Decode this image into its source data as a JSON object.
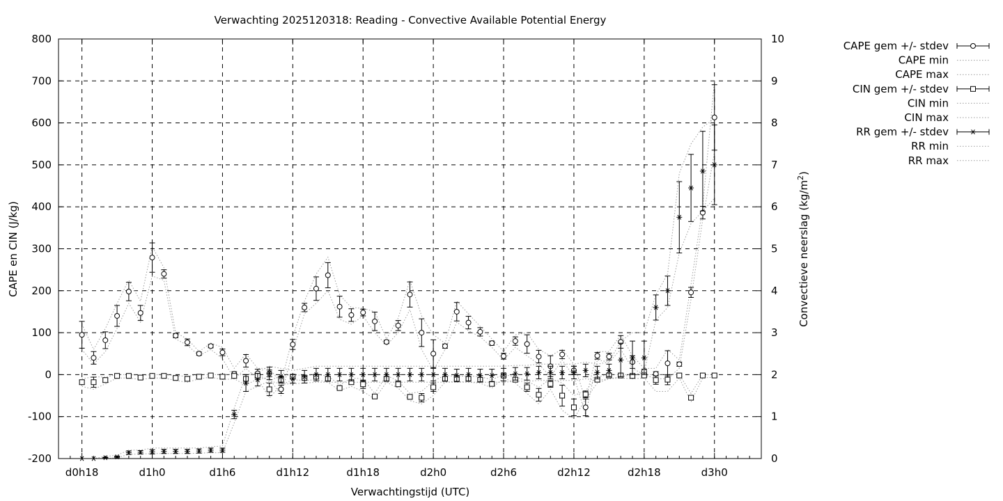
{
  "chart_data": {
    "type": "line",
    "title": "Verwachting 2025120318: Reading - Convective Available Potential Energy",
    "xlabel": "Verwachtingstijd (UTC)",
    "ylabel_left": "CAPE en CIN (J/kg)",
    "ylabel_right_main": "Convectieve neerslag (kg/m",
    "ylabel_right_sup": "2",
    "ylabel_right_end": ")",
    "ylim_left": [
      -200,
      800
    ],
    "ylim_right": [
      0,
      10
    ],
    "xlim_hours": [
      16,
      76
    ],
    "grid": true,
    "legend_position": "outside-right",
    "x_ticks": [
      {
        "hour": 18,
        "label": "d0h18"
      },
      {
        "hour": 24,
        "label": "d1h0"
      },
      {
        "hour": 30,
        "label": "d1h6"
      },
      {
        "hour": 36,
        "label": "d1h12"
      },
      {
        "hour": 42,
        "label": "d1h18"
      },
      {
        "hour": 48,
        "label": "d2h0"
      },
      {
        "hour": 54,
        "label": "d2h6"
      },
      {
        "hour": 60,
        "label": "d2h12"
      },
      {
        "hour": 66,
        "label": "d2h18"
      },
      {
        "hour": 72,
        "label": "d3h0"
      }
    ],
    "y_ticks_left": [
      "-200",
      "-100",
      "0",
      "100",
      "200",
      "300",
      "400",
      "500",
      "600",
      "700",
      "800"
    ],
    "y_ticks_right": [
      "0",
      "1",
      "2",
      "3",
      "4",
      "5",
      "6",
      "7",
      "8",
      "9",
      "10"
    ],
    "x_hours": [
      18,
      19,
      20,
      21,
      22,
      23,
      24,
      25,
      26,
      27,
      28,
      29,
      30,
      31,
      32,
      33,
      34,
      35,
      36,
      37,
      38,
      39,
      40,
      41,
      42,
      43,
      44,
      45,
      46,
      47,
      48,
      49,
      50,
      51,
      52,
      53,
      54,
      55,
      56,
      57,
      58,
      59,
      60,
      61,
      62,
      63,
      64,
      65,
      66,
      67,
      68,
      69,
      70,
      71,
      72
    ],
    "series": [
      {
        "name": "CAPE gem +/- stdev",
        "marker": "circle",
        "axis": "left",
        "mean": [
          95,
          40,
          82,
          140,
          198,
          147,
          279,
          240,
          93,
          77,
          50,
          68,
          53,
          2,
          33,
          3,
          3,
          -35,
          72,
          160,
          205,
          237,
          162,
          142,
          148,
          127,
          78,
          117,
          191,
          100,
          50,
          68,
          150,
          124,
          102,
          75,
          44,
          80,
          73,
          43,
          20,
          48,
          10,
          -78,
          45,
          43,
          78,
          30,
          8,
          2,
          27,
          25,
          196,
          386,
          613
        ],
        "sd": [
          32,
          15,
          20,
          25,
          22,
          18,
          35,
          10,
          5,
          8,
          4,
          4,
          8,
          5,
          15,
          10,
          8,
          10,
          12,
          10,
          28,
          30,
          25,
          15,
          8,
          22,
          4,
          12,
          30,
          33,
          33,
          5,
          22,
          15,
          10,
          5,
          7,
          10,
          22,
          15,
          25,
          10,
          10,
          20,
          8,
          8,
          15,
          15,
          5,
          5,
          30,
          5,
          12,
          15,
          78
        ]
      },
      {
        "name": "CAPE min",
        "axis": "left",
        "line": [
          60,
          25,
          55,
          110,
          170,
          125,
          235,
          225,
          85,
          70,
          45,
          60,
          38,
          -10,
          15,
          -10,
          -8,
          -50,
          55,
          145,
          170,
          200,
          132,
          120,
          140,
          100,
          70,
          100,
          155,
          60,
          10,
          60,
          125,
          105,
          90,
          65,
          35,
          65,
          45,
          25,
          -5,
          35,
          -5,
          -95,
          35,
          30,
          60,
          15,
          0,
          -10,
          -10,
          15,
          180,
          370,
          530
        ]
      },
      {
        "name": "CAPE max",
        "axis": "left",
        "line": [
          120,
          60,
          110,
          170,
          225,
          175,
          305,
          255,
          100,
          85,
          55,
          75,
          65,
          15,
          50,
          15,
          15,
          -20,
          90,
          175,
          240,
          280,
          190,
          160,
          158,
          150,
          85,
          135,
          225,
          140,
          95,
          75,
          175,
          145,
          115,
          85,
          55,
          95,
          100,
          60,
          45,
          60,
          25,
          -60,
          55,
          55,
          95,
          45,
          15,
          15,
          60,
          35,
          215,
          400,
          700
        ]
      },
      {
        "name": "CIN gem +/- stdev",
        "marker": "square",
        "axis": "left",
        "mean": [
          -18,
          -18,
          -13,
          -3,
          -3,
          -7,
          -3,
          -3,
          -8,
          -10,
          -5,
          -2,
          -5,
          -3,
          -10,
          -3,
          -35,
          -12,
          -5,
          -8,
          -5,
          -10,
          -32,
          -18,
          -23,
          -52,
          -10,
          -23,
          -53,
          -55,
          -30,
          -10,
          -10,
          -10,
          -12,
          -22,
          -2,
          -12,
          -30,
          -48,
          -22,
          -50,
          -78,
          -47,
          -12,
          -2,
          -2,
          -3,
          -2,
          -13,
          -12,
          -2,
          -55,
          -2,
          -2
        ],
        "sd": [
          5,
          12,
          5,
          3,
          3,
          3,
          3,
          3,
          3,
          4,
          3,
          2,
          5,
          5,
          10,
          5,
          15,
          8,
          5,
          3,
          3,
          5,
          3,
          5,
          10,
          3,
          5,
          5,
          5,
          10,
          10,
          5,
          3,
          3,
          4,
          5,
          3,
          5,
          10,
          15,
          8,
          25,
          20,
          8,
          5,
          5,
          3,
          5,
          3,
          10,
          12,
          3,
          5,
          3,
          3
        ]
      },
      {
        "name": "CIN min",
        "axis": "left",
        "line": [
          -28,
          -35,
          -22,
          -8,
          -8,
          -12,
          -8,
          -8,
          -14,
          -18,
          -10,
          -6,
          -12,
          -10,
          -25,
          -10,
          -55,
          -25,
          -12,
          -14,
          -12,
          -18,
          -38,
          -28,
          -40,
          -58,
          -18,
          -32,
          -62,
          -70,
          -50,
          -18,
          -16,
          -18,
          -20,
          -32,
          -8,
          -20,
          -45,
          -70,
          -35,
          -85,
          -105,
          -58,
          -20,
          -10,
          -8,
          -10,
          -8,
          -40,
          -40,
          -8,
          -65,
          -8,
          -6
        ]
      },
      {
        "name": "CIN max",
        "axis": "left",
        "line": [
          -10,
          -5,
          -6,
          0,
          0,
          -2,
          0,
          0,
          -2,
          -4,
          0,
          0,
          0,
          0,
          0,
          0,
          -15,
          -2,
          0,
          -2,
          0,
          -3,
          -25,
          -8,
          -10,
          -45,
          -2,
          -15,
          -45,
          -40,
          -15,
          -2,
          -4,
          -3,
          -5,
          -12,
          0,
          -5,
          -15,
          -30,
          -10,
          -20,
          -50,
          -38,
          -5,
          0,
          0,
          0,
          0,
          0,
          0,
          0,
          -45,
          0,
          0
        ]
      },
      {
        "name": "RR gem +/- stdev",
        "marker": "star",
        "axis": "right",
        "mean": [
          0,
          0,
          0.02,
          0.04,
          0.14,
          0.15,
          0.16,
          0.17,
          0.17,
          0.17,
          0.18,
          0.2,
          0.2,
          1.05,
          1.8,
          1.88,
          2.03,
          1.95,
          1.9,
          1.95,
          2,
          2,
          2,
          2,
          2,
          2,
          2,
          2,
          2,
          2,
          2,
          2,
          1.98,
          2,
          1.98,
          1.98,
          2,
          2.02,
          2.02,
          2.05,
          2.05,
          2.05,
          2.05,
          2.1,
          2.05,
          2.1,
          2.35,
          2.4,
          2.4,
          3.6,
          4.0,
          5.75,
          6.45,
          6.85,
          7.0
        ],
        "sd": [
          0,
          0,
          0.01,
          0.02,
          0.04,
          0.04,
          0.05,
          0.05,
          0.05,
          0.05,
          0.05,
          0.05,
          0.05,
          0.1,
          0.2,
          0.15,
          0.15,
          0.15,
          0.1,
          0.15,
          0.15,
          0.15,
          0.15,
          0.15,
          0.15,
          0.15,
          0.15,
          0.15,
          0.15,
          0.15,
          0.15,
          0.15,
          0.15,
          0.15,
          0.15,
          0.15,
          0.15,
          0.15,
          0.15,
          0.15,
          0.15,
          0.15,
          0.15,
          0.15,
          0.15,
          0.15,
          0.4,
          0.4,
          0.4,
          0.3,
          0.35,
          0.85,
          0.8,
          0.95,
          0.95
        ]
      },
      {
        "name": "RR min",
        "axis": "right",
        "line": [
          0,
          0,
          0,
          0.02,
          0.1,
          0.11,
          0.12,
          0.12,
          0.12,
          0.12,
          0.13,
          0.14,
          0.14,
          0.85,
          1.6,
          1.72,
          1.85,
          1.78,
          1.78,
          1.8,
          1.82,
          1.82,
          1.82,
          1.82,
          1.82,
          1.82,
          1.82,
          1.82,
          1.82,
          1.82,
          1.82,
          1.82,
          1.82,
          1.82,
          1.82,
          1.82,
          1.82,
          1.84,
          1.84,
          1.86,
          1.86,
          1.86,
          1.86,
          1.9,
          1.86,
          1.9,
          1.95,
          2.0,
          2.05,
          3.3,
          3.6,
          4.9,
          5.6,
          5.9,
          6.2
        ]
      },
      {
        "name": "RR max",
        "axis": "right",
        "line": [
          0,
          0,
          0.05,
          0.08,
          0.2,
          0.2,
          0.25,
          0.25,
          0.25,
          0.25,
          0.25,
          0.28,
          0.3,
          1.2,
          2.0,
          2.05,
          2.2,
          2.15,
          2.1,
          2.15,
          2.2,
          2.2,
          2.2,
          2.2,
          2.2,
          2.2,
          2.2,
          2.2,
          2.2,
          2.2,
          2.2,
          2.2,
          2.2,
          2.2,
          2.2,
          2.2,
          2.2,
          2.22,
          2.22,
          2.25,
          2.25,
          2.25,
          2.25,
          2.3,
          2.25,
          2.3,
          2.8,
          3.0,
          3.0,
          3.9,
          4.4,
          6.8,
          7.5,
          7.9,
          8.1
        ]
      }
    ]
  }
}
